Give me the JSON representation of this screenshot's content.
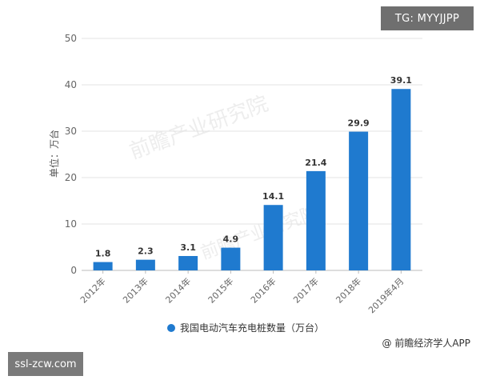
{
  "badges": {
    "top_right": "TG: MYYJJPP",
    "bottom_left": "ssl-zcw.com"
  },
  "source": "@ 前瞻经济学人APP",
  "colors": {
    "bar": "#1f7acf",
    "grid": "#e3e3e3",
    "axis_text": "#666666",
    "label_text": "#333333"
  },
  "chart_data": {
    "type": "bar",
    "categories": [
      "2012年",
      "2013年",
      "2014年",
      "2015年",
      "2016年",
      "2017年",
      "2018年",
      "2019年4月"
    ],
    "series": [
      {
        "name": "我国电动汽车充电桩数量（万台）",
        "values": [
          1.8,
          2.3,
          3.1,
          4.9,
          14.1,
          21.4,
          29.9,
          39.1
        ]
      }
    ],
    "value_labels": [
      "1.8",
      "2.3",
      "3.1",
      "4.9",
      "14.1",
      "21.4",
      "29.9",
      "39.1"
    ],
    "yticks": [
      "0",
      "10",
      "20",
      "30",
      "40",
      "50"
    ],
    "ylabel": "单位：万台",
    "ylim": [
      0,
      50
    ],
    "grid": true,
    "legend_position": "bottom"
  }
}
